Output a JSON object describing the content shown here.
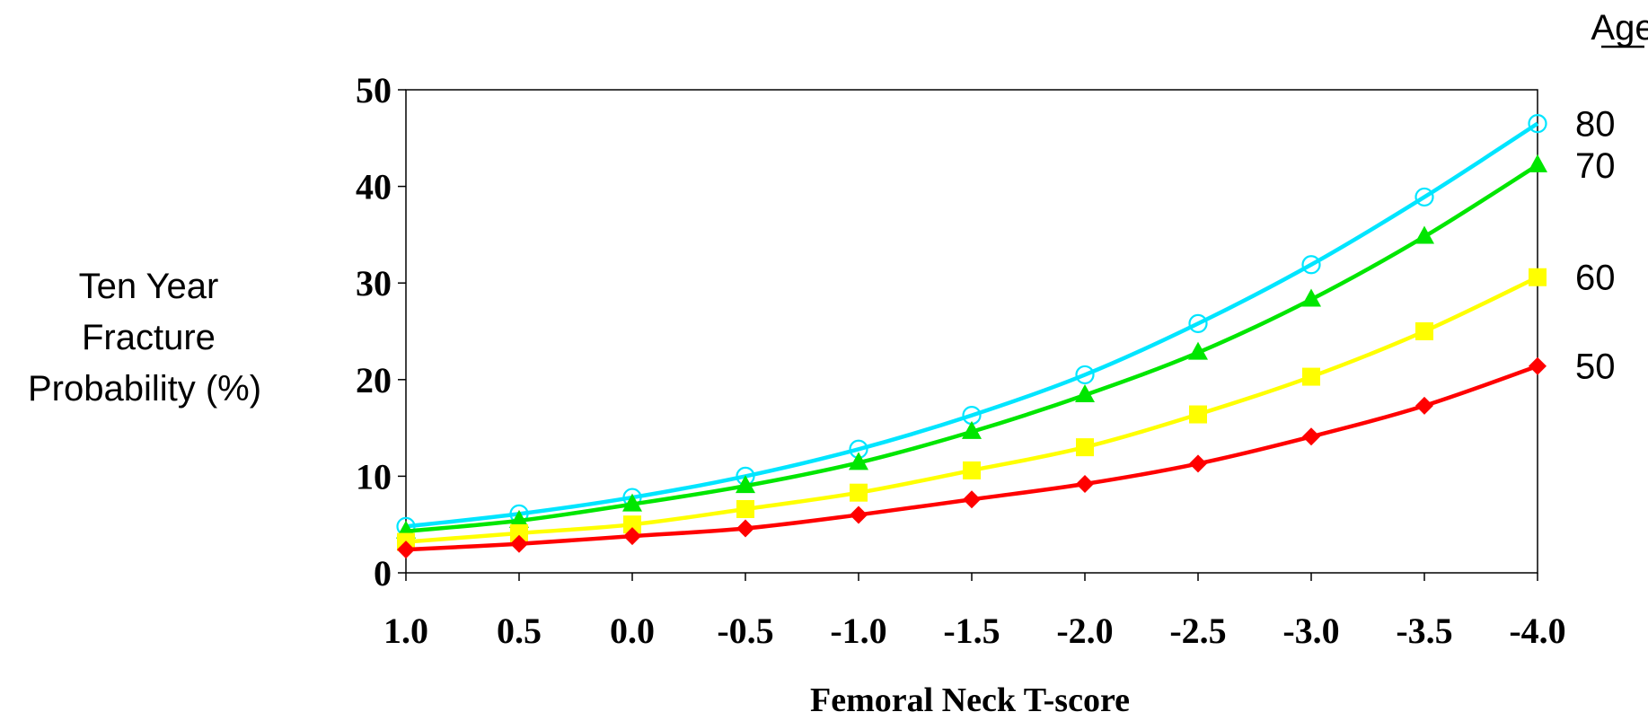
{
  "chart_data": {
    "type": "line",
    "xlabel": "Femoral Neck T-score",
    "ylabel_lines": [
      "Ten Year",
      "Fracture",
      "Probability (%)"
    ],
    "legend_title": "Age",
    "x": [
      "1.0",
      "0.5",
      "0.0",
      "-0.5",
      "-1.0",
      "-1.5",
      "-2.0",
      "-2.5",
      "-3.0",
      "-3.5",
      "-4.0"
    ],
    "x_values": [
      1.0,
      0.5,
      0.0,
      -0.5,
      -1.0,
      -1.5,
      -2.0,
      -2.5,
      -3.0,
      -3.5,
      -4.0
    ],
    "y_ticks": [
      "0",
      "10",
      "20",
      "30",
      "40",
      "50"
    ],
    "ylim": [
      0,
      50
    ],
    "grid": false,
    "series": [
      {
        "name": "80",
        "color": "#00e5ff",
        "marker": "open-circle",
        "values": [
          4.8,
          6.1,
          7.8,
          10.0,
          12.8,
          16.3,
          20.5,
          25.8,
          31.9,
          38.9,
          46.5
        ]
      },
      {
        "name": "70",
        "color": "#00e600",
        "marker": "triangle",
        "values": [
          4.3,
          5.4,
          7.1,
          9.0,
          11.4,
          14.6,
          18.4,
          22.8,
          28.3,
          34.8,
          42.2
        ]
      },
      {
        "name": "60",
        "color": "#ffff00",
        "marker": "square",
        "values": [
          3.2,
          4.1,
          5.0,
          6.6,
          8.3,
          10.6,
          13.0,
          16.4,
          20.3,
          25.0,
          30.6
        ]
      },
      {
        "name": "50",
        "color": "#ff0000",
        "marker": "diamond",
        "values": [
          2.4,
          3.0,
          3.8,
          4.6,
          6.0,
          7.6,
          9.2,
          11.3,
          14.1,
          17.3,
          21.4
        ]
      }
    ]
  }
}
